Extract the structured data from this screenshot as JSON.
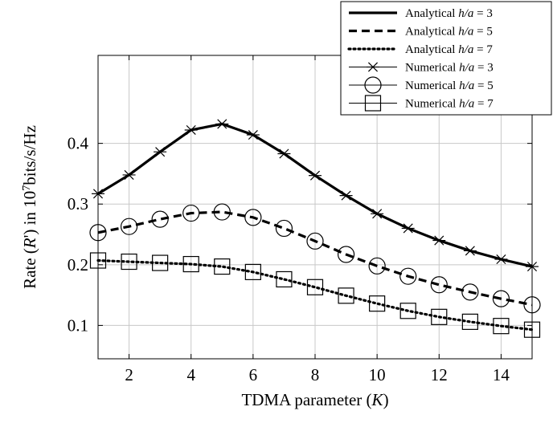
{
  "chart_data": {
    "type": "line",
    "xlabel": "TDMA parameter (K)",
    "ylabel": "Rate (R') in 10^7bits/s/Hz",
    "xlim": [
      1,
      15
    ],
    "ylim": [
      0.045,
      0.545
    ],
    "x": [
      1,
      2,
      3,
      4,
      5,
      6,
      7,
      8,
      9,
      10,
      11,
      12,
      13,
      14,
      15
    ],
    "xticks": [
      2,
      4,
      6,
      8,
      10,
      12,
      14
    ],
    "yticks": [
      0.1,
      0.2,
      0.3,
      0.4
    ],
    "xtick_labels": [
      "2",
      "4",
      "6",
      "8",
      "10",
      "12",
      "14"
    ],
    "ytick_labels": [
      "0.1",
      "0.2",
      "0.3",
      "0.4"
    ],
    "grid": true,
    "legend_position": "top-right",
    "series": [
      {
        "name": "Analytical h/a = 3",
        "style": "solid",
        "marker": "none",
        "values": [
          0.317,
          0.348,
          0.386,
          0.422,
          0.432,
          0.414,
          0.383,
          0.347,
          0.314,
          0.284,
          0.26,
          0.24,
          0.223,
          0.209,
          0.197
        ]
      },
      {
        "name": "Analytical h/a = 5",
        "style": "dashed",
        "marker": "none",
        "values": [
          0.253,
          0.263,
          0.275,
          0.285,
          0.287,
          0.278,
          0.26,
          0.239,
          0.217,
          0.198,
          0.181,
          0.167,
          0.155,
          0.144,
          0.134
        ]
      },
      {
        "name": "Analytical h/a = 7",
        "style": "dotted",
        "marker": "none",
        "values": [
          0.207,
          0.205,
          0.203,
          0.201,
          0.197,
          0.188,
          0.176,
          0.163,
          0.149,
          0.136,
          0.124,
          0.114,
          0.106,
          0.099,
          0.093
        ]
      },
      {
        "name": "Numerical h/a = 3",
        "style": "none",
        "marker": "star",
        "values": [
          0.317,
          0.348,
          0.386,
          0.422,
          0.432,
          0.414,
          0.383,
          0.347,
          0.314,
          0.284,
          0.26,
          0.24,
          0.223,
          0.209,
          0.197
        ]
      },
      {
        "name": "Numerical h/a = 5",
        "style": "none",
        "marker": "circle",
        "values": [
          0.253,
          0.263,
          0.275,
          0.285,
          0.287,
          0.278,
          0.26,
          0.239,
          0.217,
          0.198,
          0.181,
          0.167,
          0.155,
          0.144,
          0.134
        ]
      },
      {
        "name": "Numerical h/a = 7",
        "style": "none",
        "marker": "square",
        "values": [
          0.207,
          0.205,
          0.203,
          0.201,
          0.197,
          0.188,
          0.176,
          0.163,
          0.149,
          0.136,
          0.124,
          0.114,
          0.106,
          0.099,
          0.093
        ]
      }
    ],
    "legend": [
      {
        "prefix": "Analytical",
        "ratio": "h/a = 3"
      },
      {
        "prefix": "Analytical",
        "ratio": "h/a = 5"
      },
      {
        "prefix": "Analytical",
        "ratio": "h/a = 7"
      },
      {
        "prefix": "Numerical",
        "ratio": "h/a = 3"
      },
      {
        "prefix": "Numerical",
        "ratio": "h/a = 5"
      },
      {
        "prefix": "Numerical",
        "ratio": "h/a = 7"
      }
    ]
  }
}
